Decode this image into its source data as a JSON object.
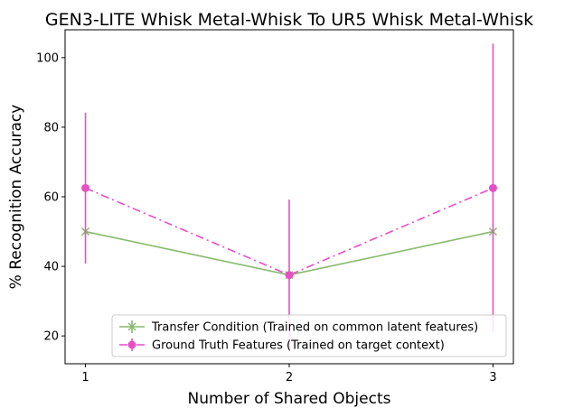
{
  "chart_data": {
    "type": "line",
    "title": "GEN3-LITE Whisk Metal-Whisk To UR5 Whisk Metal-Whisk",
    "xlabel": "Number of Shared Objects",
    "ylabel": "% Recognition Accuracy",
    "x": [
      1,
      2,
      3
    ],
    "xticks": [
      "1",
      "2",
      "3"
    ],
    "xlim": [
      0.9,
      3.1
    ],
    "yticks": [
      20,
      40,
      60,
      80,
      100
    ],
    "ylim": [
      12,
      108
    ],
    "grid": false,
    "legend_position": "lower-right",
    "series": [
      {
        "name": "Transfer Condition (Trained on common latent features)",
        "values": [
          50,
          37.5,
          50
        ],
        "error": [
          0,
          0,
          0
        ],
        "color": "#86b96e",
        "marker": "x",
        "linestyle": "solid"
      },
      {
        "name": "Ground Truth Features (Trained on target context)",
        "values": [
          62.5,
          37.5,
          62.5
        ],
        "error": [
          21.7,
          21.7,
          41.5
        ],
        "color": "#e84fc5",
        "marker": "circle",
        "linestyle": "dashdot"
      }
    ]
  }
}
